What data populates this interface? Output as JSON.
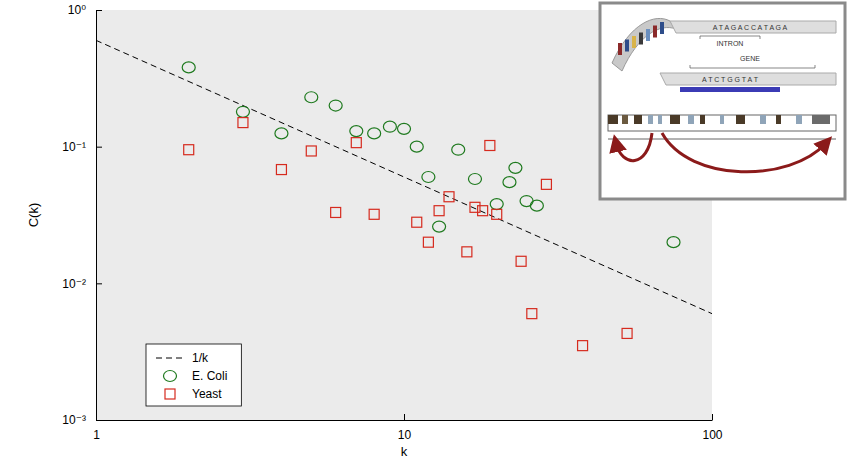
{
  "chart_data": {
    "type": "scatter",
    "x_label": "k",
    "y_label": "C(k)",
    "log": true,
    "grid": false,
    "legend": "lower left",
    "xlim": [
      1,
      100
    ],
    "xticks": [
      1,
      10,
      100
    ],
    "ylim": [
      0.001,
      1
    ],
    "yticks": [
      {
        "value": 0.001,
        "label": "10⁻³"
      },
      {
        "value": 0.01,
        "label": "10⁻²"
      },
      {
        "value": 0.1,
        "label": "10⁻¹"
      },
      {
        "value": 1,
        "label": "10⁰"
      }
    ],
    "annotations": [
      "A T A G A C C A T A G A",
      "INTRON",
      "GENE",
      "A T C T G G T A T"
    ],
    "series": [
      {
        "name": "1/k",
        "type": "line",
        "line_style": "dashed",
        "color": "#000000",
        "x": [
          1,
          100
        ],
        "values": [
          0.6,
          0.006
        ]
      },
      {
        "name": "E. Coli",
        "type": "scatter",
        "marker": "circle",
        "color": "#1f7a1f",
        "x": [
          2,
          3,
          4,
          5,
          6,
          7,
          8,
          9,
          10,
          11,
          12,
          13,
          15,
          17,
          20,
          22,
          23,
          25,
          27,
          75
        ],
        "values": [
          0.38,
          0.18,
          0.125,
          0.23,
          0.2,
          0.13,
          0.125,
          0.14,
          0.135,
          0.1,
          0.06,
          0.026,
          0.095,
          0.058,
          0.038,
          0.055,
          0.07,
          0.04,
          0.037,
          0.02
        ]
      },
      {
        "name": "Yeast",
        "type": "scatter",
        "marker": "square",
        "color": "#d62a1e",
        "x": [
          2,
          3,
          4,
          5,
          6,
          7,
          8,
          11,
          12,
          13,
          14,
          16,
          17,
          18,
          19,
          20,
          24,
          26,
          29,
          38,
          53
        ],
        "values": [
          0.095,
          0.15,
          0.068,
          0.093,
          0.033,
          0.107,
          0.032,
          0.028,
          0.02,
          0.034,
          0.043,
          0.017,
          0.036,
          0.034,
          0.102,
          0.032,
          0.0145,
          0.006,
          0.053,
          0.0035,
          0.0043
        ]
      }
    ]
  }
}
